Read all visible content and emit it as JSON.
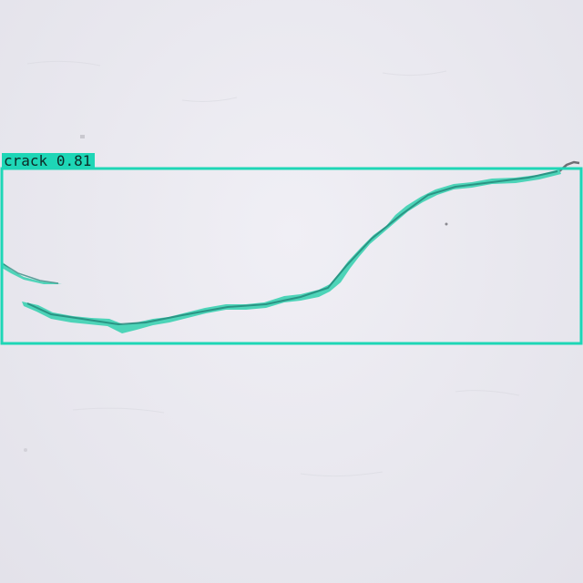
{
  "detection": {
    "class_label": "crack",
    "confidence": "0.81",
    "box_color": "#1ed6b6",
    "mask_color": "#3fd1b3"
  }
}
